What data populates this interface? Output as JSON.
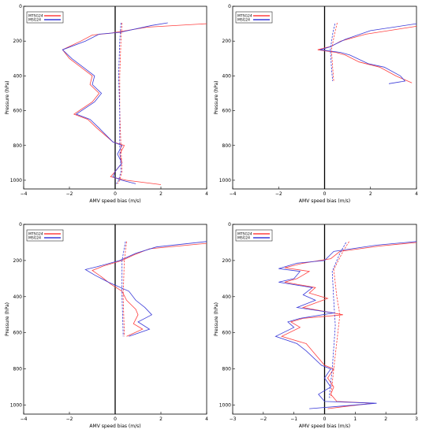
{
  "chart_data": [
    {
      "type": "line",
      "xlabel": "AMV speed bias (m/s)",
      "ylabel": "Pressure (hPa)",
      "xlim": [
        -4,
        4
      ],
      "ylim": [
        1050,
        0
      ],
      "x_ticks": [
        "−4",
        "−2",
        "0",
        "2",
        "4"
      ],
      "y_ticks": [
        "0",
        "200",
        "400",
        "600",
        "800",
        "1000"
      ],
      "legend": {
        "placement": "top-left",
        "entries": [
          "MTSG24",
          "MSG24"
        ]
      },
      "series": [
        {
          "name": "MTSG24",
          "color": "#ff4040",
          "style": "solid",
          "points": [
            [
              4.0,
              100
            ],
            [
              1.4,
              120
            ],
            [
              -0.2,
              155
            ],
            [
              -1.0,
              165
            ],
            [
              -1.5,
              200
            ],
            [
              -2.3,
              250
            ],
            [
              -2.0,
              300
            ],
            [
              -1.5,
              350
            ],
            [
              -1.0,
              400
            ],
            [
              -1.1,
              450
            ],
            [
              -0.7,
              500
            ],
            [
              -1.0,
              550
            ],
            [
              -1.8,
              620
            ],
            [
              -1.2,
              650
            ],
            [
              -0.8,
              700
            ],
            [
              -0.1,
              780
            ],
            [
              0.4,
              800
            ],
            [
              0.2,
              850
            ],
            [
              0.3,
              900
            ],
            [
              0.0,
              950
            ],
            [
              -0.2,
              980
            ],
            [
              0.5,
              1000
            ],
            [
              2.0,
              1025
            ]
          ]
        },
        {
          "name": "MSG24",
          "color": "#3a3ad8",
          "style": "solid",
          "points": [
            [
              2.3,
              95
            ],
            [
              1.6,
              110
            ],
            [
              0.2,
              150
            ],
            [
              -0.7,
              160
            ],
            [
              -1.3,
              200
            ],
            [
              -2.3,
              250
            ],
            [
              -1.9,
              300
            ],
            [
              -1.4,
              350
            ],
            [
              -0.9,
              400
            ],
            [
              -1.0,
              450
            ],
            [
              -0.6,
              500
            ],
            [
              -0.9,
              550
            ],
            [
              -1.7,
              620
            ],
            [
              -1.1,
              650
            ],
            [
              -0.7,
              700
            ],
            [
              -0.1,
              780
            ],
            [
              0.3,
              800
            ],
            [
              0.1,
              850
            ],
            [
              0.3,
              900
            ],
            [
              0.0,
              950
            ],
            [
              -0.1,
              980
            ],
            [
              0.3,
              1000
            ],
            [
              0.9,
              1020
            ]
          ]
        },
        {
          "name": "MTSG24",
          "color": "#ff4040",
          "style": "dashed",
          "points": [
            [
              0.3,
              95
            ],
            [
              0.25,
              200
            ],
            [
              0.2,
              400
            ],
            [
              0.2,
              600
            ],
            [
              0.25,
              800
            ],
            [
              0.3,
              950
            ],
            [
              0.2,
              1000
            ],
            [
              0.1,
              1020
            ]
          ]
        },
        {
          "name": "MSG24",
          "color": "#3a3ad8",
          "style": "dashed",
          "points": [
            [
              0.25,
              95
            ],
            [
              0.2,
              200
            ],
            [
              0.15,
              400
            ],
            [
              0.2,
              600
            ],
            [
              0.2,
              800
            ],
            [
              0.25,
              950
            ],
            [
              0.15,
              1000
            ],
            [
              0.05,
              1020
            ]
          ]
        }
      ]
    },
    {
      "type": "line",
      "xlabel": "AMV speed bias (m/s)",
      "ylabel": "Pressure (hPa)",
      "xlim": [
        -4,
        4
      ],
      "ylim": [
        1050,
        0
      ],
      "x_ticks": [
        "−4",
        "−2",
        "0",
        "2",
        "4"
      ],
      "y_ticks": [
        "0",
        "200",
        "400",
        "600",
        "800",
        "1000"
      ],
      "legend": {
        "placement": "top-left",
        "entries": [
          "MTSG24",
          "MSG24"
        ]
      },
      "series": [
        {
          "name": "MTSG24",
          "color": "#ff4040",
          "style": "solid",
          "points": [
            [
              4.0,
              115
            ],
            [
              1.8,
              160
            ],
            [
              0.7,
              200
            ],
            [
              0.3,
              230
            ],
            [
              -0.3,
              250
            ],
            [
              0.5,
              265
            ],
            [
              0.9,
              280
            ],
            [
              1.5,
              320
            ],
            [
              2.4,
              350
            ],
            [
              3.1,
              400
            ],
            [
              3.8,
              440
            ]
          ]
        },
        {
          "name": "MSG24",
          "color": "#3a3ad8",
          "style": "solid",
          "points": [
            [
              4.0,
              100
            ],
            [
              2.0,
              140
            ],
            [
              0.9,
              190
            ],
            [
              0.2,
              235
            ],
            [
              -0.2,
              250
            ],
            [
              0.7,
              265
            ],
            [
              1.1,
              280
            ],
            [
              1.9,
              330
            ],
            [
              2.6,
              350
            ],
            [
              3.3,
              400
            ],
            [
              3.5,
              430
            ],
            [
              2.8,
              445
            ]
          ]
        },
        {
          "name": "MTSG24",
          "color": "#ff4040",
          "style": "dashed",
          "points": [
            [
              0.55,
              95
            ],
            [
              0.45,
              150
            ],
            [
              0.3,
              250
            ],
            [
              0.35,
              350
            ],
            [
              0.4,
              430
            ]
          ]
        },
        {
          "name": "MSG24",
          "color": "#3a3ad8",
          "style": "dashed",
          "points": [
            [
              0.45,
              100
            ],
            [
              0.35,
              160
            ],
            [
              0.25,
              250
            ],
            [
              0.3,
              350
            ],
            [
              0.35,
              430
            ]
          ]
        }
      ]
    },
    {
      "type": "line",
      "xlabel": "AMV speed bias (m/s)",
      "ylabel": "Pressure (hPa)",
      "xlim": [
        -4,
        4
      ],
      "ylim": [
        1050,
        0
      ],
      "x_ticks": [
        "−4",
        "−2",
        "0",
        "2",
        "4"
      ],
      "y_ticks": [
        "0",
        "200",
        "400",
        "600",
        "800",
        "1000"
      ],
      "legend": {
        "placement": "top-left",
        "entries": [
          "MTSG24",
          "MSG24"
        ]
      },
      "series": [
        {
          "name": "MTSG24",
          "color": "#ff4040",
          "style": "solid",
          "points": [
            [
              4.0,
              105
            ],
            [
              1.5,
              135
            ],
            [
              0.8,
              170
            ],
            [
              0.3,
              200
            ],
            [
              -0.5,
              230
            ],
            [
              -1.0,
              255
            ],
            [
              -0.6,
              290
            ],
            [
              -0.2,
              330
            ],
            [
              0.3,
              370
            ],
            [
              0.5,
              420
            ],
            [
              0.9,
              470
            ],
            [
              1.0,
              500
            ],
            [
              0.8,
              550
            ],
            [
              1.2,
              580
            ],
            [
              0.5,
              620
            ]
          ]
        },
        {
          "name": "MSG24",
          "color": "#3a3ad8",
          "style": "solid",
          "points": [
            [
              4.0,
              95
            ],
            [
              1.8,
              125
            ],
            [
              0.9,
              160
            ],
            [
              0.2,
              200
            ],
            [
              -0.8,
              235
            ],
            [
              -1.3,
              250
            ],
            [
              -0.9,
              280
            ],
            [
              -0.3,
              320
            ],
            [
              0.6,
              370
            ],
            [
              0.9,
              420
            ],
            [
              1.3,
              460
            ],
            [
              1.6,
              500
            ],
            [
              1.0,
              540
            ],
            [
              1.5,
              580
            ],
            [
              0.6,
              620
            ]
          ]
        },
        {
          "name": "MTSG24",
          "color": "#ff4040",
          "style": "dashed",
          "points": [
            [
              0.5,
              95
            ],
            [
              0.4,
              200
            ],
            [
              0.35,
              400
            ],
            [
              0.4,
              600
            ],
            [
              0.4,
              620
            ]
          ]
        },
        {
          "name": "MSG24",
          "color": "#3a3ad8",
          "style": "dashed",
          "points": [
            [
              0.45,
              95
            ],
            [
              0.3,
              200
            ],
            [
              0.3,
              400
            ],
            [
              0.35,
              600
            ],
            [
              0.35,
              620
            ]
          ]
        }
      ]
    },
    {
      "type": "line",
      "xlabel": "AMV speed bias (m/s)",
      "ylabel": "Pressure (hPa)",
      "xlim": [
        -3,
        3
      ],
      "ylim": [
        1050,
        0
      ],
      "x_ticks": [
        "−3",
        "−2",
        "−1",
        "0",
        "1",
        "2",
        "3"
      ],
      "y_ticks": [
        "0",
        "200",
        "400",
        "600",
        "800",
        "1000"
      ],
      "legend": {
        "placement": "top-left",
        "entries": [
          "MTSG24",
          "MSG24"
        ]
      },
      "series": [
        {
          "name": "MTSG24",
          "color": "#ff4040",
          "style": "solid",
          "points": [
            [
              3.0,
              100
            ],
            [
              1.8,
              120
            ],
            [
              0.5,
              150
            ],
            [
              0.2,
              190
            ],
            [
              -0.7,
              215
            ],
            [
              -1.3,
              240
            ],
            [
              -0.5,
              260
            ],
            [
              -0.9,
              300
            ],
            [
              -1.3,
              320
            ],
            [
              -0.3,
              350
            ],
            [
              -0.5,
              380
            ],
            [
              0.1,
              410
            ],
            [
              -0.7,
              460
            ],
            [
              0.6,
              500
            ],
            [
              -0.7,
              520
            ],
            [
              -1.1,
              540
            ],
            [
              -0.8,
              570
            ],
            [
              -1.4,
              620
            ],
            [
              -0.6,
              660
            ],
            [
              -0.4,
              700
            ],
            [
              0.0,
              780
            ],
            [
              0.3,
              800
            ],
            [
              0.1,
              850
            ],
            [
              0.3,
              900
            ],
            [
              0.2,
              940
            ],
            [
              0.4,
              980
            ],
            [
              1.6,
              990
            ],
            [
              0.8,
              1005
            ],
            [
              0.1,
              1020
            ]
          ]
        },
        {
          "name": "MSG24",
          "color": "#3a3ad8",
          "style": "solid",
          "points": [
            [
              3.0,
              95
            ],
            [
              1.7,
              115
            ],
            [
              0.3,
              150
            ],
            [
              0.0,
              200
            ],
            [
              -0.9,
              215
            ],
            [
              -1.5,
              245
            ],
            [
              -0.8,
              260
            ],
            [
              -1.0,
              300
            ],
            [
              -1.5,
              320
            ],
            [
              -0.4,
              350
            ],
            [
              -0.7,
              390
            ],
            [
              -0.3,
              420
            ],
            [
              -0.9,
              460
            ],
            [
              0.3,
              490
            ],
            [
              -0.8,
              520
            ],
            [
              -1.2,
              540
            ],
            [
              -1.0,
              570
            ],
            [
              -1.6,
              620
            ],
            [
              -0.9,
              660
            ],
            [
              -0.6,
              700
            ],
            [
              -0.1,
              780
            ],
            [
              0.2,
              800
            ],
            [
              0.0,
              850
            ],
            [
              0.2,
              900
            ],
            [
              -0.2,
              940
            ],
            [
              0.0,
              980
            ],
            [
              1.7,
              990
            ],
            [
              0.6,
              1005
            ],
            [
              -0.5,
              1020
            ]
          ]
        },
        {
          "name": "MTSG24",
          "color": "#ff4040",
          "style": "dashed",
          "points": [
            [
              0.8,
              95
            ],
            [
              0.6,
              150
            ],
            [
              0.3,
              250
            ],
            [
              0.4,
              400
            ],
            [
              0.5,
              500
            ],
            [
              0.3,
              800
            ],
            [
              0.2,
              960
            ]
          ]
        },
        {
          "name": "MSG24",
          "color": "#3a3ad8",
          "style": "dashed",
          "points": [
            [
              0.7,
              100
            ],
            [
              0.5,
              160
            ],
            [
              0.25,
              260
            ],
            [
              0.3,
              420
            ],
            [
              0.35,
              560
            ],
            [
              0.25,
              800
            ],
            [
              0.15,
              960
            ]
          ]
        }
      ]
    }
  ]
}
